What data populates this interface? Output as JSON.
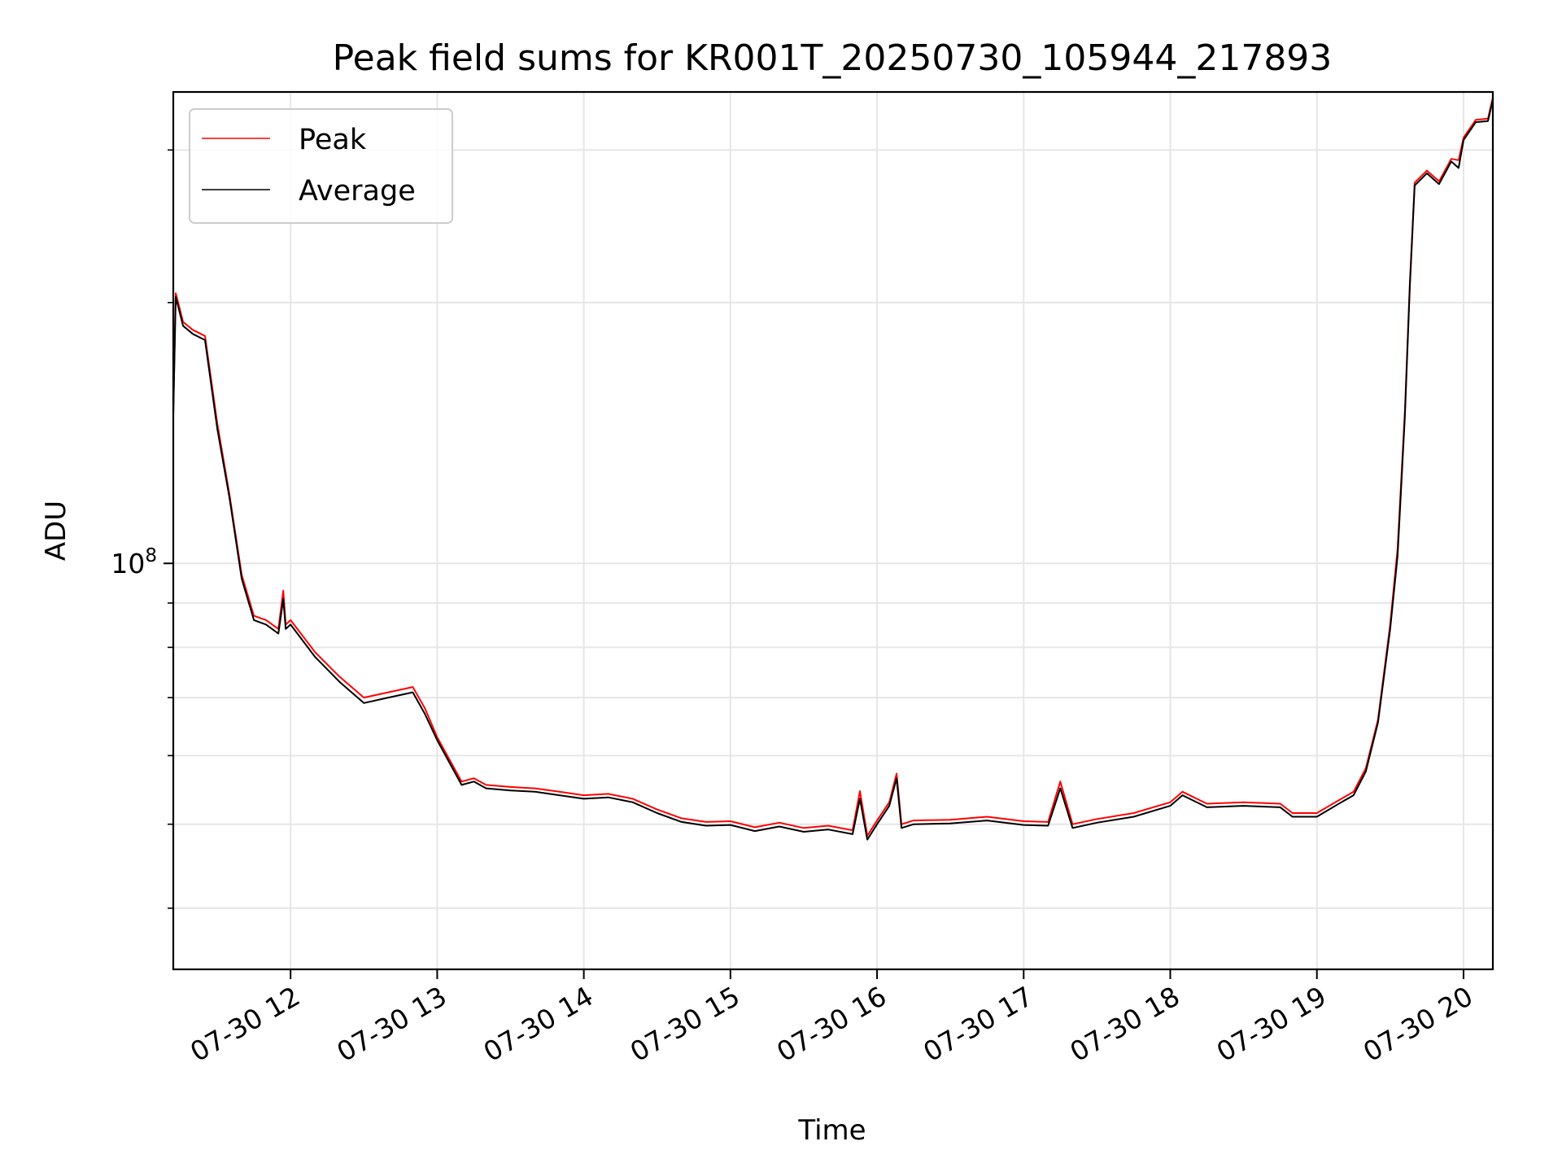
{
  "chart_data": {
    "type": "line",
    "title": "Peak field sums for KR001T_20250730_105944_217893",
    "xlabel": "Time",
    "ylabel": "ADU",
    "x_scale": "time",
    "y_scale": "log",
    "xlim": [
      "2025-07-30T11:12",
      "2025-07-30T20:12"
    ],
    "ylim": [
      34000000,
      350000000
    ],
    "x_ticks": [
      {
        "value": "2025-07-30T12:00",
        "label": "07-30 12"
      },
      {
        "value": "2025-07-30T13:00",
        "label": "07-30 13"
      },
      {
        "value": "2025-07-30T14:00",
        "label": "07-30 14"
      },
      {
        "value": "2025-07-30T15:00",
        "label": "07-30 15"
      },
      {
        "value": "2025-07-30T16:00",
        "label": "07-30 16"
      },
      {
        "value": "2025-07-30T17:00",
        "label": "07-30 17"
      },
      {
        "value": "2025-07-30T18:00",
        "label": "07-30 18"
      },
      {
        "value": "2025-07-30T19:00",
        "label": "07-30 19"
      },
      {
        "value": "2025-07-30T20:00",
        "label": "07-30 20"
      }
    ],
    "y_major_ticks": [
      {
        "value": 100000000,
        "base": "10",
        "exp": "8"
      }
    ],
    "y_minor_ticks": [
      40000000,
      50000000,
      60000000,
      70000000,
      80000000,
      90000000,
      200000000,
      300000000
    ],
    "grid": true,
    "legend": {
      "position": "top-left"
    },
    "series": [
      {
        "name": "Peak",
        "color": "#ff0000",
        "x": [
          "2025-07-30T11:12",
          "2025-07-30T11:13",
          "2025-07-30T11:14",
          "2025-07-30T11:16",
          "2025-07-30T11:20",
          "2025-07-30T11:25",
          "2025-07-30T11:30",
          "2025-07-30T11:35",
          "2025-07-30T11:40",
          "2025-07-30T11:45",
          "2025-07-30T11:50",
          "2025-07-30T11:55",
          "2025-07-30T11:57",
          "2025-07-30T11:58",
          "2025-07-30T12:00",
          "2025-07-30T12:10",
          "2025-07-30T12:20",
          "2025-07-30T12:30",
          "2025-07-30T12:40",
          "2025-07-30T12:50",
          "2025-07-30T12:55",
          "2025-07-30T13:00",
          "2025-07-30T13:10",
          "2025-07-30T13:15",
          "2025-07-30T13:20",
          "2025-07-30T13:30",
          "2025-07-30T13:40",
          "2025-07-30T13:50",
          "2025-07-30T14:00",
          "2025-07-30T14:10",
          "2025-07-30T14:20",
          "2025-07-30T14:30",
          "2025-07-30T14:40",
          "2025-07-30T14:50",
          "2025-07-30T15:00",
          "2025-07-30T15:10",
          "2025-07-30T15:20",
          "2025-07-30T15:30",
          "2025-07-30T15:40",
          "2025-07-30T15:50",
          "2025-07-30T15:53",
          "2025-07-30T15:56",
          "2025-07-30T16:00",
          "2025-07-30T16:05",
          "2025-07-30T16:08",
          "2025-07-30T16:10",
          "2025-07-30T16:15",
          "2025-07-30T16:30",
          "2025-07-30T16:45",
          "2025-07-30T17:00",
          "2025-07-30T17:10",
          "2025-07-30T17:15",
          "2025-07-30T17:20",
          "2025-07-30T17:30",
          "2025-07-30T17:45",
          "2025-07-30T18:00",
          "2025-07-30T18:05",
          "2025-07-30T18:15",
          "2025-07-30T18:30",
          "2025-07-30T18:45",
          "2025-07-30T18:50",
          "2025-07-30T19:00",
          "2025-07-30T19:10",
          "2025-07-30T19:15",
          "2025-07-30T19:20",
          "2025-07-30T19:25",
          "2025-07-30T19:30",
          "2025-07-30T19:33",
          "2025-07-30T19:36",
          "2025-07-30T19:38",
          "2025-07-30T19:40",
          "2025-07-30T19:45",
          "2025-07-30T19:50",
          "2025-07-30T19:55",
          "2025-07-30T19:58",
          "2025-07-30T20:00",
          "2025-07-30T20:05",
          "2025-07-30T20:10",
          "2025-07-30T20:12"
        ],
        "y": [
          150000000,
          205000000,
          200000000,
          190000000,
          186000000,
          183000000,
          145000000,
          120000000,
          97000000,
          87000000,
          86000000,
          84000000,
          93000000,
          85000000,
          86000000,
          79000000,
          74000000,
          70000000,
          71000000,
          72000000,
          68000000,
          63000000,
          56000000,
          56500000,
          55500000,
          55200000,
          55000000,
          54500000,
          54000000,
          54200000,
          53500000,
          52000000,
          50800000,
          50300000,
          50400000,
          49600000,
          50200000,
          49500000,
          49800000,
          49200000,
          54600000,
          48500000,
          50500000,
          53000000,
          57200000,
          50000000,
          50500000,
          50600000,
          51000000,
          50400000,
          50300000,
          56000000,
          50000000,
          50700000,
          51500000,
          53000000,
          54500000,
          52800000,
          53000000,
          52800000,
          51500000,
          51500000,
          53500000,
          54500000,
          58000000,
          66000000,
          85000000,
          104000000,
          150000000,
          210000000,
          275000000,
          284000000,
          276000000,
          293000000,
          292000000,
          310000000,
          325000000,
          326000000,
          345000000
        ]
      },
      {
        "name": "Average",
        "color": "#000000",
        "x": [
          "2025-07-30T11:12",
          "2025-07-30T11:13",
          "2025-07-30T11:14",
          "2025-07-30T11:16",
          "2025-07-30T11:20",
          "2025-07-30T11:25",
          "2025-07-30T11:30",
          "2025-07-30T11:35",
          "2025-07-30T11:40",
          "2025-07-30T11:45",
          "2025-07-30T11:50",
          "2025-07-30T11:55",
          "2025-07-30T11:57",
          "2025-07-30T11:58",
          "2025-07-30T12:00",
          "2025-07-30T12:10",
          "2025-07-30T12:20",
          "2025-07-30T12:30",
          "2025-07-30T12:40",
          "2025-07-30T12:50",
          "2025-07-30T12:55",
          "2025-07-30T13:00",
          "2025-07-30T13:10",
          "2025-07-30T13:15",
          "2025-07-30T13:20",
          "2025-07-30T13:30",
          "2025-07-30T13:40",
          "2025-07-30T13:50",
          "2025-07-30T14:00",
          "2025-07-30T14:10",
          "2025-07-30T14:20",
          "2025-07-30T14:30",
          "2025-07-30T14:40",
          "2025-07-30T14:50",
          "2025-07-30T15:00",
          "2025-07-30T15:10",
          "2025-07-30T15:20",
          "2025-07-30T15:30",
          "2025-07-30T15:40",
          "2025-07-30T15:50",
          "2025-07-30T15:53",
          "2025-07-30T15:56",
          "2025-07-30T16:00",
          "2025-07-30T16:05",
          "2025-07-30T16:08",
          "2025-07-30T16:10",
          "2025-07-30T16:15",
          "2025-07-30T16:30",
          "2025-07-30T16:45",
          "2025-07-30T17:00",
          "2025-07-30T17:10",
          "2025-07-30T17:15",
          "2025-07-30T17:20",
          "2025-07-30T17:30",
          "2025-07-30T17:45",
          "2025-07-30T18:00",
          "2025-07-30T18:05",
          "2025-07-30T18:15",
          "2025-07-30T18:30",
          "2025-07-30T18:45",
          "2025-07-30T18:50",
          "2025-07-30T19:00",
          "2025-07-30T19:10",
          "2025-07-30T19:15",
          "2025-07-30T19:20",
          "2025-07-30T19:25",
          "2025-07-30T19:30",
          "2025-07-30T19:33",
          "2025-07-30T19:36",
          "2025-07-30T19:38",
          "2025-07-30T19:40",
          "2025-07-30T19:45",
          "2025-07-30T19:50",
          "2025-07-30T19:55",
          "2025-07-30T19:58",
          "2025-07-30T20:00",
          "2025-07-30T20:05",
          "2025-07-30T20:10",
          "2025-07-30T20:12"
        ],
        "y": [
          148000000,
          203000000,
          198000000,
          188000000,
          184000000,
          181000000,
          143000000,
          119000000,
          96000000,
          86000000,
          85000000,
          83000000,
          91000000,
          84000000,
          85000000,
          78000000,
          73000000,
          69000000,
          70000000,
          71000000,
          67000000,
          62500000,
          55500000,
          56000000,
          55000000,
          54700000,
          54500000,
          54000000,
          53500000,
          53700000,
          53000000,
          51500000,
          50300000,
          49800000,
          49900000,
          49100000,
          49700000,
          49000000,
          49300000,
          48700000,
          53500000,
          48000000,
          50000000,
          52500000,
          56500000,
          49500000,
          50000000,
          50100000,
          50500000,
          49900000,
          49800000,
          55000000,
          49500000,
          50200000,
          51000000,
          52500000,
          54000000,
          52300000,
          52500000,
          52300000,
          51000000,
          51000000,
          53000000,
          54000000,
          57500000,
          65500000,
          84000000,
          102000000,
          148000000,
          208000000,
          273000000,
          282000000,
          274000000,
          291000000,
          286000000,
          308000000,
          323000000,
          324000000,
          343000000
        ]
      }
    ]
  }
}
